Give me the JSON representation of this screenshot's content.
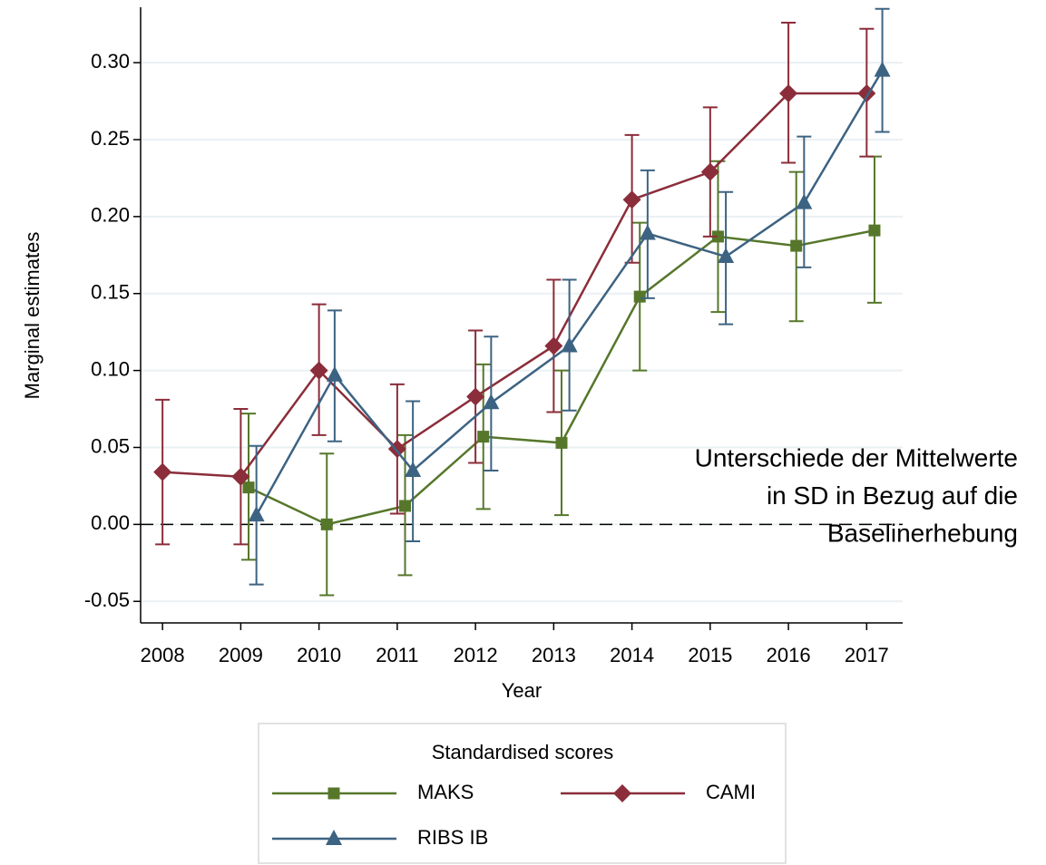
{
  "chart_data": {
    "type": "line",
    "x_label": "Year",
    "y_label": "Marginal estimates",
    "x": [
      2008,
      2009,
      2010,
      2011,
      2012,
      2013,
      2014,
      2015,
      2016,
      2017
    ],
    "xlim": [
      2007.72,
      2017.46
    ],
    "xticks": [
      2008,
      2009,
      2010,
      2011,
      2012,
      2013,
      2014,
      2015,
      2016,
      2017
    ],
    "ylim": [
      -0.064,
      0.336
    ],
    "yticks": [
      {
        "value": -0.05,
        "label": "-0.05"
      },
      {
        "value": 0,
        "label": "0.00"
      },
      {
        "value": 0.05,
        "label": "0.05"
      },
      {
        "value": 0.1,
        "label": "0.10"
      },
      {
        "value": 0.15,
        "label": "0.15"
      },
      {
        "value": 0.2,
        "label": "0.20"
      },
      {
        "value": 0.25,
        "label": "0.25"
      },
      {
        "value": 0.3,
        "label": "0.30"
      }
    ],
    "grid": true,
    "reference_line": 0,
    "annotation": [
      "Unterschiede der Mittelwerte",
      "in SD in Bezug auf die",
      "Baselinerhebung"
    ],
    "legend_title": "Standardised scores",
    "legend_position": "bottom",
    "series": [
      {
        "name": "MAKS",
        "color": "#56772a",
        "marker": "square",
        "values": [
          null,
          0.024,
          0.0,
          0.012,
          0.057,
          0.053,
          0.148,
          0.187,
          0.181,
          0.191
        ],
        "lower": [
          null,
          -0.023,
          -0.046,
          -0.033,
          0.01,
          0.006,
          0.1,
          0.138,
          0.132,
          0.144
        ],
        "upper": [
          null,
          0.072,
          0.046,
          0.058,
          0.104,
          0.1,
          0.196,
          0.236,
          0.229,
          0.239
        ]
      },
      {
        "name": "CAMI",
        "color": "#8b2d3a",
        "marker": "diamond",
        "values": [
          0.034,
          0.031,
          0.1,
          0.049,
          0.083,
          0.116,
          0.211,
          0.229,
          0.28,
          0.28
        ],
        "lower": [
          -0.013,
          -0.013,
          0.058,
          0.007,
          0.04,
          0.073,
          0.17,
          0.187,
          0.235,
          0.239
        ],
        "upper": [
          0.081,
          0.075,
          0.143,
          0.091,
          0.126,
          0.159,
          0.253,
          0.271,
          0.326,
          0.322
        ]
      },
      {
        "name": "RIBS IB",
        "color": "#3d6382",
        "marker": "triangle",
        "values": [
          null,
          0.006,
          0.097,
          0.035,
          0.079,
          0.116,
          0.189,
          0.174,
          0.209,
          0.295
        ],
        "lower": [
          null,
          -0.039,
          0.054,
          -0.011,
          0.035,
          0.074,
          0.147,
          0.13,
          0.167,
          0.255
        ],
        "upper": [
          null,
          0.051,
          0.139,
          0.08,
          0.122,
          0.159,
          0.23,
          0.216,
          0.252,
          0.335
        ]
      }
    ]
  }
}
